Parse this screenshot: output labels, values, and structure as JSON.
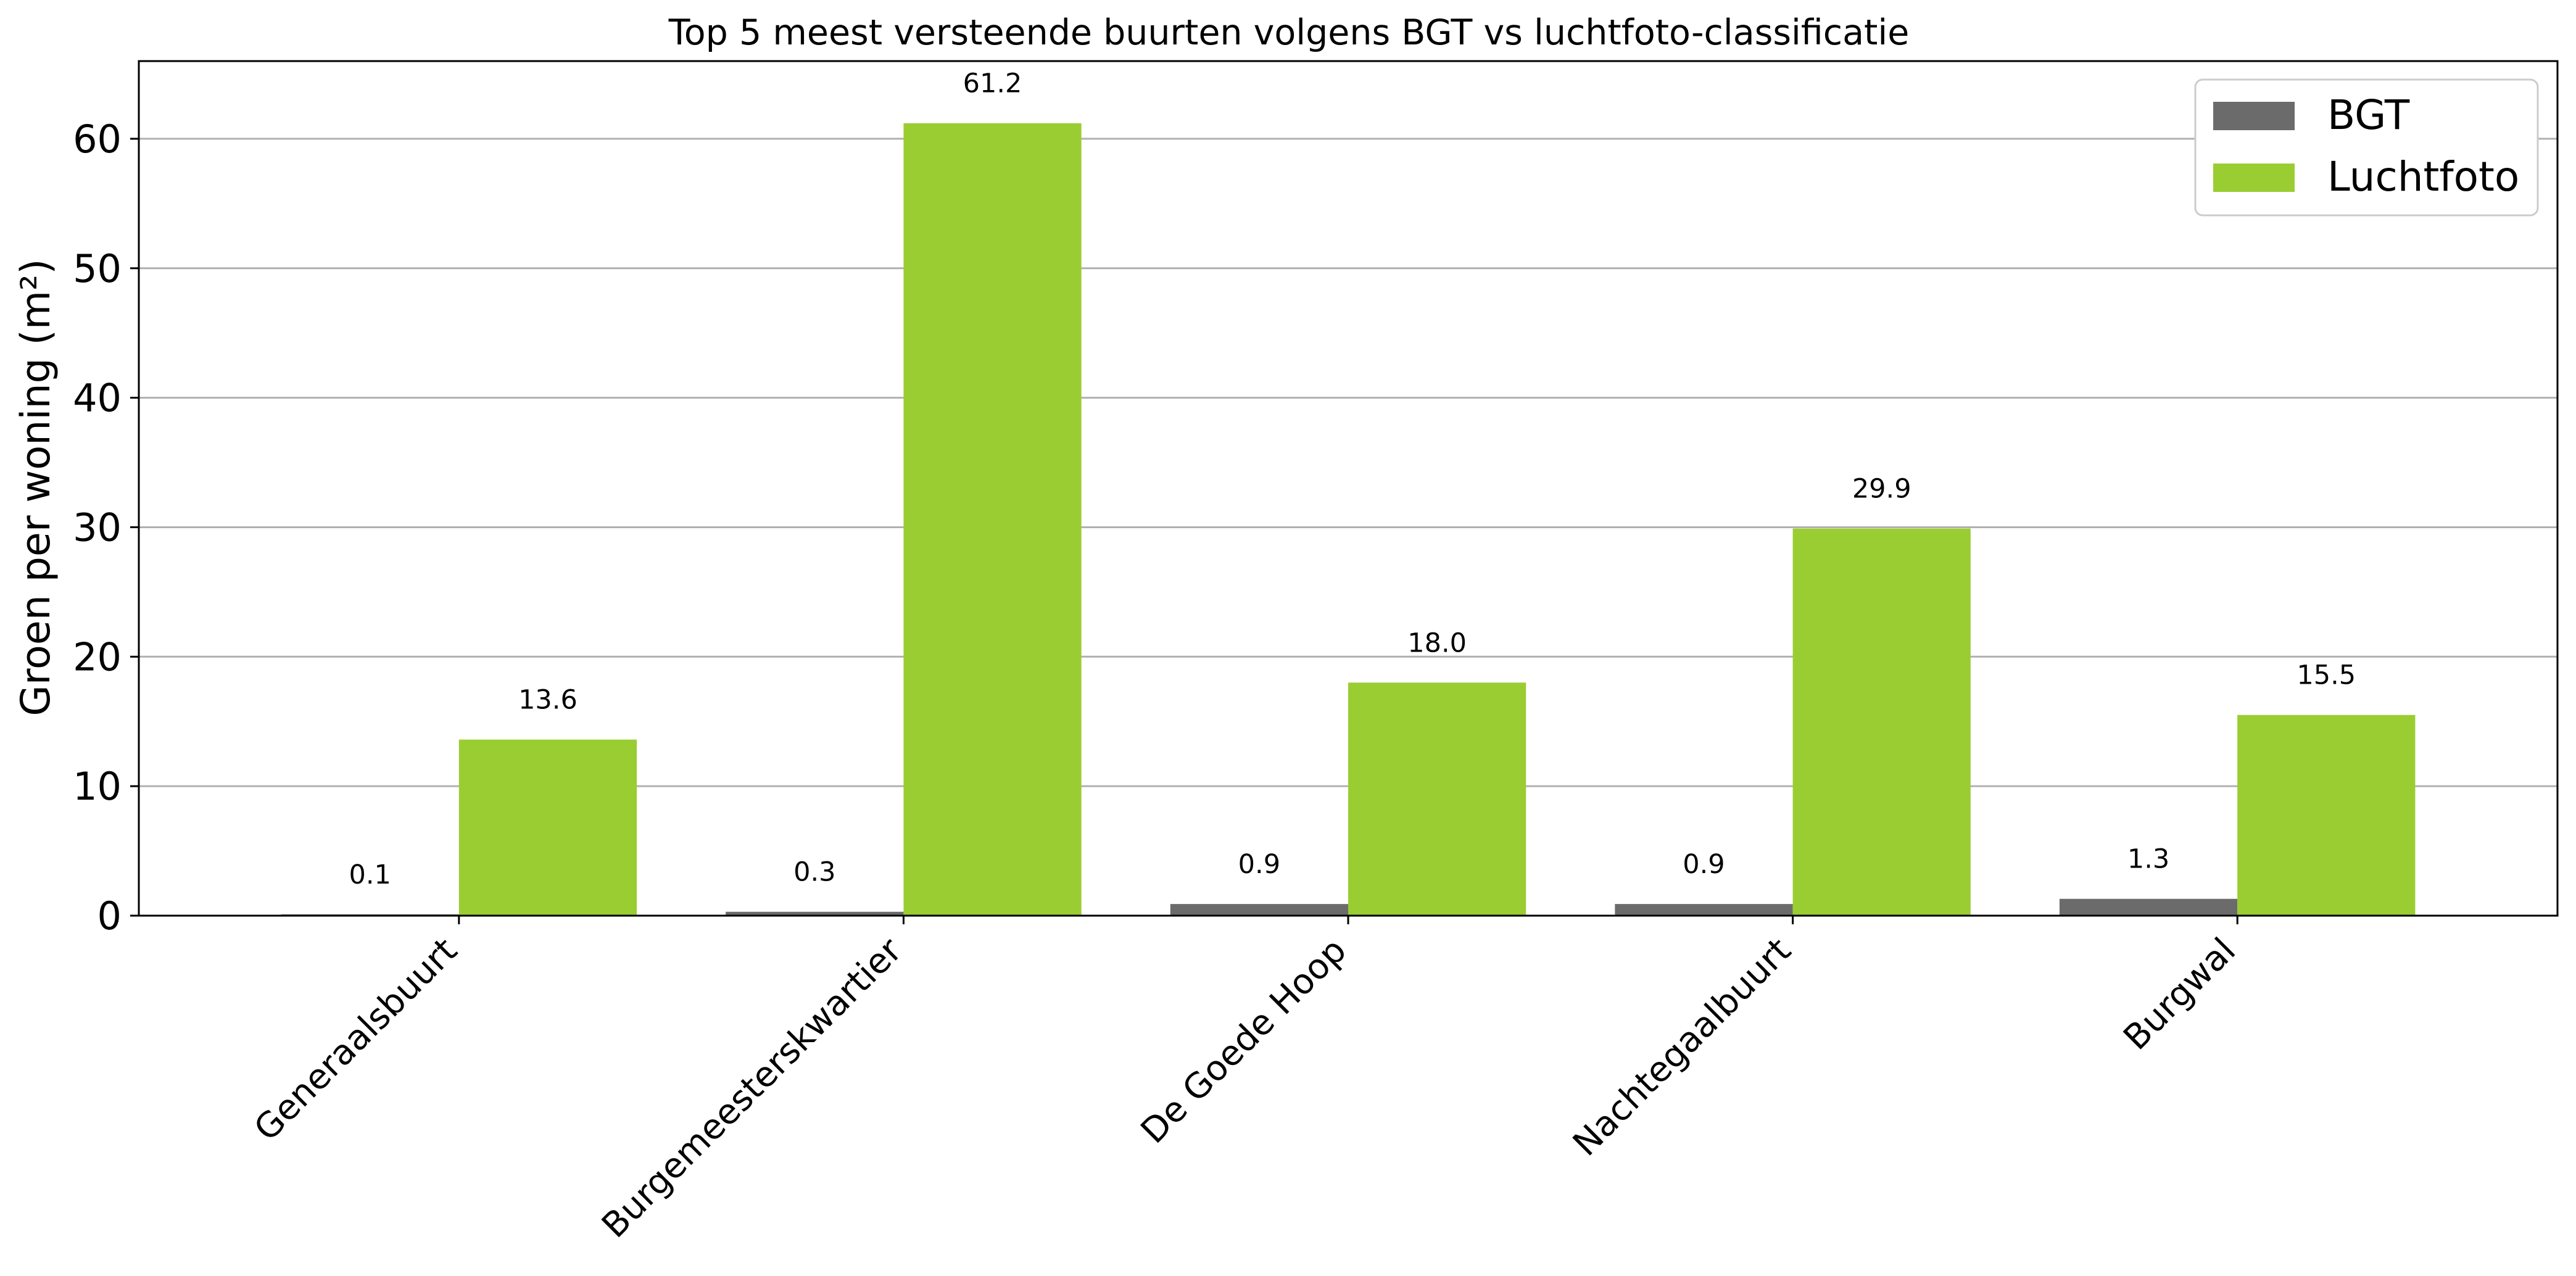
{
  "chart_data": {
    "type": "bar",
    "title": "Top 5 meest versteende buurten volgens BGT vs luchtfoto-classificatie",
    "xlabel": "",
    "ylabel": "Groen per woning (m²)",
    "categories": [
      "Generaalsbuurt",
      "Burgemeesterskwartier",
      "De Goede Hoop",
      "Nachtegaalbuurt",
      "Burgwal"
    ],
    "series": [
      {
        "name": "BGT",
        "color": "#6b6b6b",
        "values": [
          0.1,
          0.3,
          0.9,
          0.9,
          1.3
        ],
        "labels": [
          "0.1",
          "0.3",
          "0.9",
          "0.9",
          "1.3"
        ]
      },
      {
        "name": "Luchtfoto",
        "color": "#9acd32",
        "values": [
          13.6,
          61.2,
          18.0,
          29.9,
          15.5
        ],
        "labels": [
          "13.6",
          "61.2",
          "18.0",
          "29.9",
          "15.5"
        ]
      }
    ],
    "ylim": [
      0,
      66
    ],
    "yticks": [
      0,
      10,
      20,
      30,
      40,
      50,
      60
    ],
    "grid": "y",
    "legend_position": "top-right"
  }
}
